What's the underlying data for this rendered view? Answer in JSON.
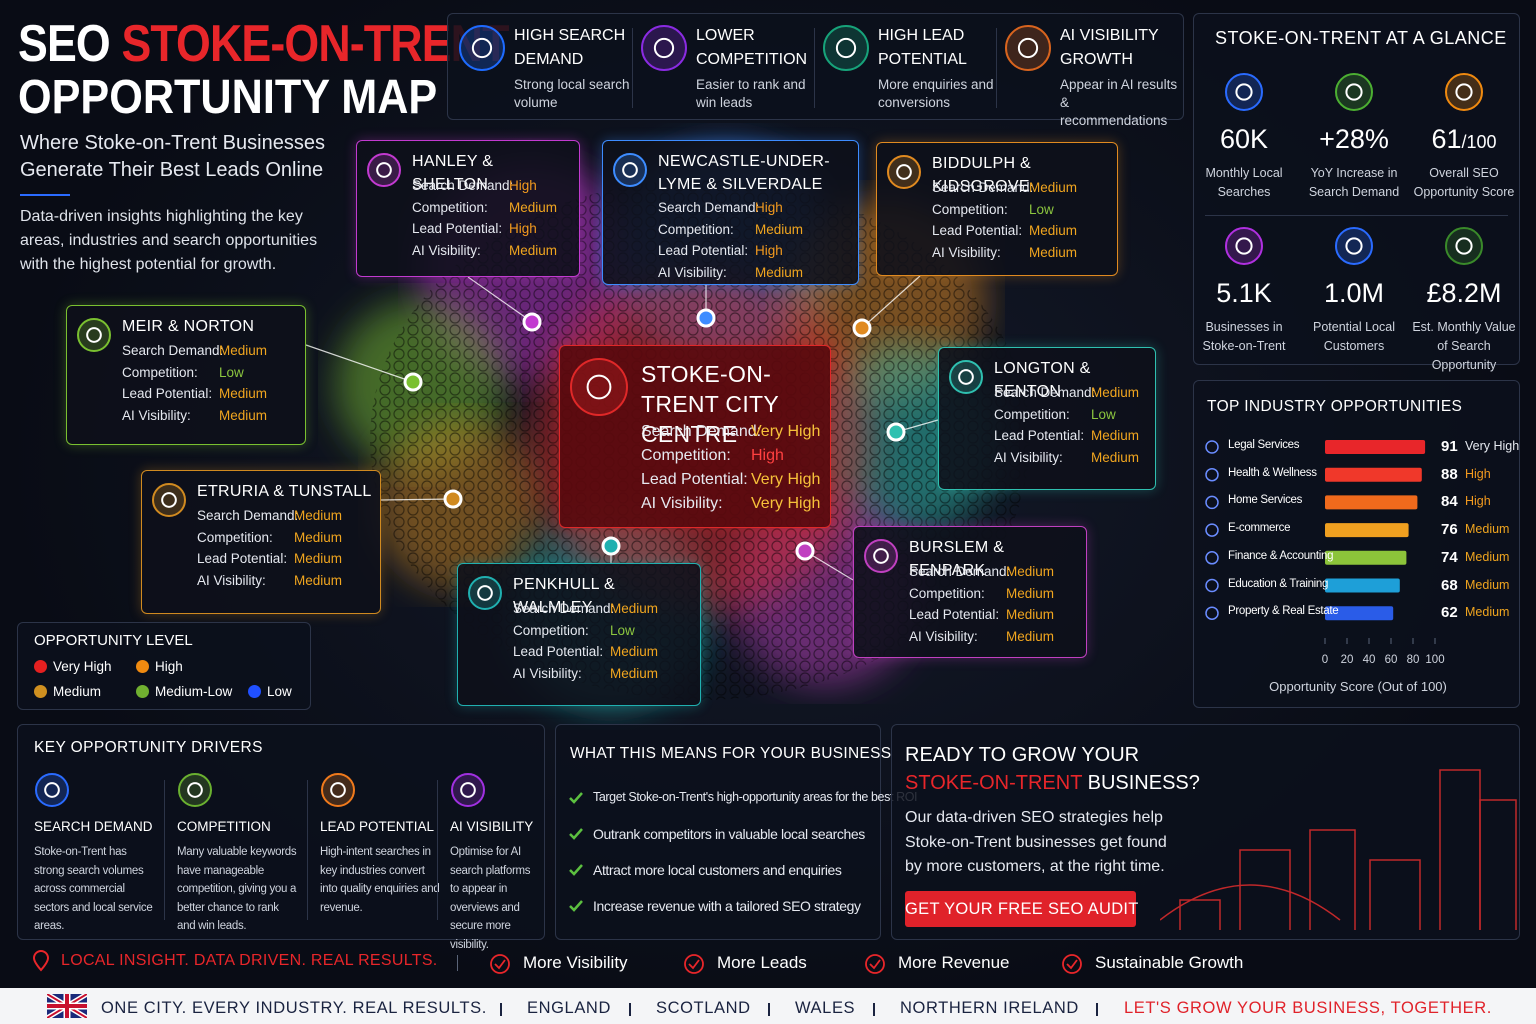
{
  "header": {
    "title_prefix": "SEO",
    "title_highlight": "STOKE-ON-TRENT",
    "title_line2": "OPPORTUNITY MAP",
    "subtitle": "Where Stoke-on-Trent Businesses Generate Their Best Leads Online",
    "description": "Data-driven insights highlighting the key areas, industries and search opportunities with the highest potential for growth."
  },
  "features": [
    {
      "title": "HIGH SEARCH DEMAND",
      "text": "Strong local search volume",
      "color": "#1e6bff"
    },
    {
      "title": "LOWER COMPETITION",
      "text": "Easier to rank and win leads",
      "color": "#8a2be2"
    },
    {
      "title": "HIGH LEAD POTENTIAL",
      "text": "More enquiries and conversions",
      "color": "#17a37a"
    },
    {
      "title": "AI VISIBILITY GROWTH",
      "text": "Appear in AI results & recommendations",
      "color": "#d8641e"
    }
  ],
  "glance": {
    "title": "STOKE-ON-TRENT AT A GLANCE",
    "stats": [
      {
        "value": "60K",
        "label": "Monthly Local Searches",
        "color": "#2a6bff"
      },
      {
        "value": "+28%",
        "label": "YoY Increase in Search Demand",
        "color": "#4caf32"
      },
      {
        "value": "61",
        "suffix": "/100",
        "label": "Overall SEO Opportunity Score",
        "color": "#f08a10"
      },
      {
        "value": "5.1K",
        "label": "Businesses in Stoke-on-Trent",
        "color": "#b030e0"
      },
      {
        "value": "1.0M",
        "label": "Potential Local Customers",
        "color": "#2a6bff"
      },
      {
        "value": "£8.2M",
        "label": "Est. Monthly Value of Search Opportunity",
        "color": "#3a8a2a"
      }
    ]
  },
  "level_colors": {
    "Very High": "#f7c13a",
    "High": "#f39a1e",
    "Medium": "#f0a51f",
    "Low": "#8cc63f"
  },
  "areas": [
    {
      "name": "HANLEY & SHELTON",
      "color": "#c23ad0",
      "rows": [
        {
          "label": "Search Demand:",
          "value": "High"
        },
        {
          "label": "Competition:",
          "value": "Medium"
        },
        {
          "label": "Lead Potential:",
          "value": "High"
        },
        {
          "label": "AI Visibility:",
          "value": "Medium"
        }
      ]
    },
    {
      "name": "NEWCASTLE-UNDER-LYME & SILVERDALE",
      "color": "#3d8cff",
      "rows": [
        {
          "label": "Search Demand:",
          "value": "High"
        },
        {
          "label": "Competition:",
          "value": "Medium"
        },
        {
          "label": "Lead Potential:",
          "value": "High"
        },
        {
          "label": "AI Visibility:",
          "value": "Medium"
        }
      ]
    },
    {
      "name": "BIDDULPH & KIDSGROVE",
      "color": "#e08a20",
      "rows": [
        {
          "label": "Search Demand:",
          "value": "Medium"
        },
        {
          "label": "Competition:",
          "value": "Low"
        },
        {
          "label": "Lead Potential:",
          "value": "Medium"
        },
        {
          "label": "AI Visibility:",
          "value": "Medium"
        }
      ]
    },
    {
      "name": "MEIR & NORTON",
      "color": "#7ac030",
      "rows": [
        {
          "label": "Search Demand:",
          "value": "Medium"
        },
        {
          "label": "Competition:",
          "value": "Low"
        },
        {
          "label": "Lead Potential:",
          "value": "Medium"
        },
        {
          "label": "AI Visibility:",
          "value": "Medium"
        }
      ]
    },
    {
      "name": "LONGTON & FENTON",
      "color": "#2fc0b0",
      "rows": [
        {
          "label": "Search Demand:",
          "value": "Medium"
        },
        {
          "label": "Competition:",
          "value": "Low"
        },
        {
          "label": "Lead Potential:",
          "value": "Medium"
        },
        {
          "label": "AI Visibility:",
          "value": "Medium"
        }
      ]
    },
    {
      "name": "ETRURIA & TUNSTALL",
      "color": "#d08a20",
      "rows": [
        {
          "label": "Search Demand:",
          "value": "Medium"
        },
        {
          "label": "Competition:",
          "value": "Medium"
        },
        {
          "label": "Lead Potential:",
          "value": "Medium"
        },
        {
          "label": "AI Visibility:",
          "value": "Medium"
        }
      ]
    },
    {
      "name": "PENKHULL & WALMLEY",
      "color": "#20b0b0",
      "rows": [
        {
          "label": "Search Demand:",
          "value": "Medium"
        },
        {
          "label": "Competition:",
          "value": "Low"
        },
        {
          "label": "Lead Potential:",
          "value": "Medium"
        },
        {
          "label": "AI Visibility:",
          "value": "Medium"
        }
      ]
    },
    {
      "name": "BURSLEM & FENPARK",
      "color": "#c040c0",
      "rows": [
        {
          "label": "Search Demand:",
          "value": "Medium"
        },
        {
          "label": "Competition:",
          "value": "Medium"
        },
        {
          "label": "Lead Potential:",
          "value": "Medium"
        },
        {
          "label": "AI Visibility:",
          "value": "Medium"
        }
      ]
    },
    {
      "name": "STOKE-ON-TRENT CITY CENTRE",
      "color": "#e02828",
      "rows": [
        {
          "label": "Search Demand:",
          "value": "Very High"
        },
        {
          "label": "Competition:",
          "value": "High"
        },
        {
          "label": "Lead Potential:",
          "value": "Very High"
        },
        {
          "label": "AI Visibility:",
          "value": "Very High"
        }
      ]
    }
  ],
  "legend": {
    "title": "OPPORTUNITY LEVEL",
    "items": [
      {
        "name": "Very High",
        "color": "#e52020"
      },
      {
        "name": "High",
        "color": "#f08a10"
      },
      {
        "name": "Medium",
        "color": "#d09020"
      },
      {
        "name": "Medium-Low",
        "color": "#70b030"
      },
      {
        "name": "Low",
        "color": "#2050ff"
      }
    ]
  },
  "industries": {
    "title": "TOP INDUSTRY OPPORTUNITIES",
    "xlabel": "Opportunity Score (Out of 100)",
    "xlim": [
      0,
      100
    ],
    "xticks": [
      0,
      20,
      40,
      60,
      80,
      100
    ],
    "items": [
      {
        "name": "Legal Services",
        "score": 91,
        "level": "Very High",
        "color": "#e8262a"
      },
      {
        "name": "Health & Wellness",
        "score": 88,
        "level": "High",
        "color": "#f0382a"
      },
      {
        "name": "Home Services",
        "score": 84,
        "level": "High",
        "color": "#f06a1c"
      },
      {
        "name": "E-commerce",
        "score": 76,
        "level": "Medium",
        "color": "#f0a020"
      },
      {
        "name": "Finance & Accounting",
        "score": 74,
        "level": "Medium",
        "color": "#8cc43a"
      },
      {
        "name": "Education & Training",
        "score": 68,
        "level": "Medium",
        "color": "#1e9fd8"
      },
      {
        "name": "Property & Real Estate",
        "score": 62,
        "level": "Medium",
        "color": "#2a5ce8"
      }
    ]
  },
  "drivers": {
    "title": "KEY OPPORTUNITY DRIVERS",
    "items": [
      {
        "title": "SEARCH DEMAND",
        "text": "Stoke-on-Trent has strong search volumes across commercial sectors and local service areas.",
        "color": "#2a6bff"
      },
      {
        "title": "COMPETITION",
        "text": "Many valuable keywords have manageable competition, giving you a better chance to rank and win leads.",
        "color": "#6ab030"
      },
      {
        "title": "LEAD POTENTIAL",
        "text": "High-intent searches in key industries convert into quality enquiries and revenue.",
        "color": "#f07a1c"
      },
      {
        "title": "AI VISIBILITY",
        "text": "Optimise for AI search platforms to appear in overviews and secure more visibility.",
        "color": "#a030e0"
      }
    ]
  },
  "means": {
    "title": "WHAT THIS MEANS FOR YOUR BUSINESS",
    "items": [
      "Target Stoke-on-Trent's high-opportunity areas for the best ROI",
      "Outrank competitors in valuable local searches",
      "Attract more local customers and enquiries",
      "Increase revenue with a tailored SEO strategy"
    ]
  },
  "cta": {
    "title_line1": "READY TO GROW YOUR",
    "title_highlight": "STOKE-ON-TRENT",
    "title_rest": "BUSINESS?",
    "text": "Our data-driven SEO strategies help Stoke-on-Trent businesses get found by more customers, at the right time.",
    "button": "GET YOUR FREE SEO AUDIT"
  },
  "strip": {
    "tagline": "LOCAL INSIGHT. DATA DRIVEN. REAL RESULTS.",
    "items": [
      "More Visibility",
      "More Leads",
      "More Revenue",
      "Sustainable Growth"
    ]
  },
  "footer": {
    "tagline": "ONE CITY. EVERY INDUSTRY. REAL RESULTS.",
    "regions": [
      "ENGLAND",
      "SCOTLAND",
      "WALES",
      "NORTHERN IRELAND"
    ],
    "closing": "LET'S GROW YOUR BUSINESS, TOGETHER."
  }
}
